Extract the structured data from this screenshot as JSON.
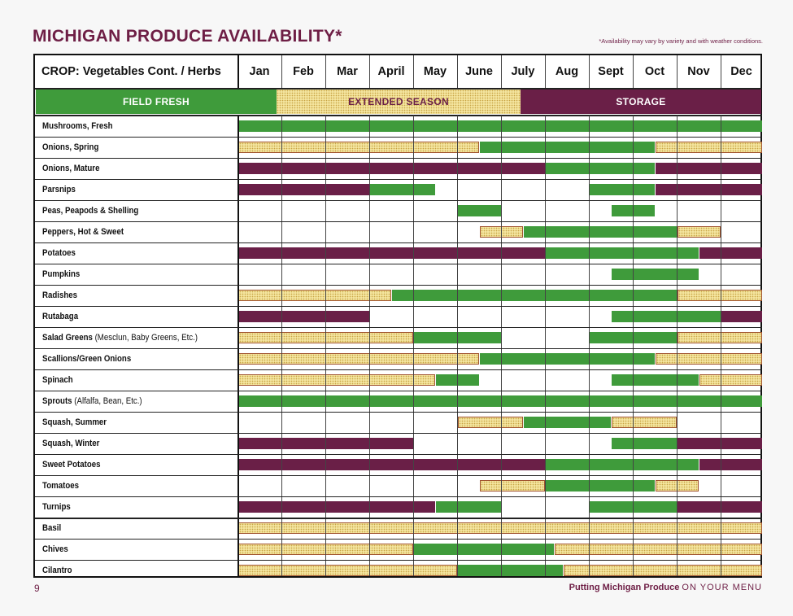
{
  "title": "MICHIGAN PRODUCE AVAILABILITY*",
  "note": "*Availability may vary by variety and with weather conditions.",
  "table": {
    "crop_header": "CROP: Vegetables Cont. / Herbs",
    "months": [
      "Jan",
      "Feb",
      "Mar",
      "April",
      "May",
      "June",
      "July",
      "Aug",
      "Sept",
      "Oct",
      "Nov",
      "Dec"
    ],
    "legend": {
      "field_fresh": "FIELD FRESH",
      "extended_season": "EXTENDED SEASON",
      "storage": "STORAGE"
    },
    "colors": {
      "field_fresh": "#3f9b3b",
      "extended_season": "#f4e59f",
      "storage": "#6a1f47",
      "title": "#6e1e45"
    },
    "rows": [
      {
        "name": "Mushrooms, Fresh",
        "note": "",
        "bars": [
          {
            "t": "fresh",
            "s": 0,
            "e": 12
          }
        ]
      },
      {
        "name": "Onions, Spring",
        "note": "",
        "bars": [
          {
            "t": "extended",
            "s": 0,
            "e": 5.5
          },
          {
            "t": "fresh",
            "s": 5.5,
            "e": 9.5
          },
          {
            "t": "extended",
            "s": 9.5,
            "e": 12
          }
        ]
      },
      {
        "name": "Onions, Mature",
        "note": "",
        "bars": [
          {
            "t": "storage",
            "s": 0,
            "e": 7
          },
          {
            "t": "fresh",
            "s": 7,
            "e": 9.5
          },
          {
            "t": "storage",
            "s": 9.5,
            "e": 12
          }
        ]
      },
      {
        "name": "Parsnips",
        "note": "",
        "bars": [
          {
            "t": "storage",
            "s": 0,
            "e": 3
          },
          {
            "t": "fresh",
            "s": 3,
            "e": 4.5
          },
          {
            "t": "fresh",
            "s": 8,
            "e": 9.5
          },
          {
            "t": "storage",
            "s": 9.5,
            "e": 12
          }
        ]
      },
      {
        "name": "Peas, Peapods & Shelling",
        "note": "",
        "bars": [
          {
            "t": "fresh",
            "s": 5,
            "e": 6
          },
          {
            "t": "fresh",
            "s": 8.5,
            "e": 9.5
          }
        ]
      },
      {
        "name": "Peppers, Hot & Sweet",
        "note": "",
        "bars": [
          {
            "t": "extended",
            "s": 5.5,
            "e": 6.5
          },
          {
            "t": "fresh",
            "s": 6.5,
            "e": 10
          },
          {
            "t": "extended",
            "s": 10,
            "e": 11
          }
        ]
      },
      {
        "name": "Potatoes",
        "note": "",
        "bars": [
          {
            "t": "storage",
            "s": 0,
            "e": 7
          },
          {
            "t": "fresh",
            "s": 7,
            "e": 10.5
          },
          {
            "t": "storage",
            "s": 10.5,
            "e": 12
          }
        ]
      },
      {
        "name": "Pumpkins",
        "note": "",
        "bars": [
          {
            "t": "fresh",
            "s": 8.5,
            "e": 10.5
          }
        ]
      },
      {
        "name": "Radishes",
        "note": "",
        "bars": [
          {
            "t": "extended",
            "s": 0,
            "e": 3.5
          },
          {
            "t": "fresh",
            "s": 3.5,
            "e": 10
          },
          {
            "t": "extended",
            "s": 10,
            "e": 12
          }
        ]
      },
      {
        "name": "Rutabaga",
        "note": "",
        "bars": [
          {
            "t": "storage",
            "s": 0,
            "e": 3
          },
          {
            "t": "fresh",
            "s": 8.5,
            "e": 11
          },
          {
            "t": "storage",
            "s": 11,
            "e": 12
          }
        ]
      },
      {
        "name": "Salad Greens",
        "note": "(Mesclun, Baby Greens, Etc.)",
        "bars": [
          {
            "t": "extended",
            "s": 0,
            "e": 4
          },
          {
            "t": "fresh",
            "s": 4,
            "e": 6
          },
          {
            "t": "fresh",
            "s": 8,
            "e": 10
          },
          {
            "t": "extended",
            "s": 10,
            "e": 12
          }
        ]
      },
      {
        "name": "Scallions/Green Onions",
        "note": "",
        "bars": [
          {
            "t": "extended",
            "s": 0,
            "e": 5.5
          },
          {
            "t": "fresh",
            "s": 5.5,
            "e": 9.5
          },
          {
            "t": "extended",
            "s": 9.5,
            "e": 12
          }
        ]
      },
      {
        "name": "Spinach",
        "note": "",
        "bars": [
          {
            "t": "extended",
            "s": 0,
            "e": 4.5
          },
          {
            "t": "fresh",
            "s": 4.5,
            "e": 5.5
          },
          {
            "t": "fresh",
            "s": 8.5,
            "e": 10.5
          },
          {
            "t": "extended",
            "s": 10.5,
            "e": 12
          }
        ]
      },
      {
        "name": "Sprouts",
        "note": "(Alfalfa, Bean, Etc.)",
        "bars": [
          {
            "t": "fresh",
            "s": 0,
            "e": 12
          }
        ]
      },
      {
        "name": "Squash, Summer",
        "note": "",
        "bars": [
          {
            "t": "extended",
            "s": 5,
            "e": 6.5
          },
          {
            "t": "fresh",
            "s": 6.5,
            "e": 8.5
          },
          {
            "t": "extended",
            "s": 8.5,
            "e": 10
          }
        ]
      },
      {
        "name": "Squash, Winter",
        "note": "",
        "bars": [
          {
            "t": "storage",
            "s": 0,
            "e": 4
          },
          {
            "t": "fresh",
            "s": 8.5,
            "e": 10
          },
          {
            "t": "storage",
            "s": 10,
            "e": 12
          }
        ]
      },
      {
        "name": "Sweet Potatoes",
        "note": "",
        "bars": [
          {
            "t": "storage",
            "s": 0,
            "e": 7
          },
          {
            "t": "fresh",
            "s": 7,
            "e": 10.5
          },
          {
            "t": "storage",
            "s": 10.5,
            "e": 12
          }
        ]
      },
      {
        "name": "Tomatoes",
        "note": "",
        "bars": [
          {
            "t": "extended",
            "s": 5.5,
            "e": 7
          },
          {
            "t": "fresh",
            "s": 7,
            "e": 9.5
          },
          {
            "t": "extended",
            "s": 9.5,
            "e": 10.5
          }
        ]
      },
      {
        "name": "Turnips",
        "note": "",
        "bars": [
          {
            "t": "storage",
            "s": 0,
            "e": 4.5
          },
          {
            "t": "fresh",
            "s": 4.5,
            "e": 6
          },
          {
            "t": "fresh",
            "s": 8,
            "e": 10
          },
          {
            "t": "storage",
            "s": 10,
            "e": 12
          }
        ]
      },
      {
        "name": "Basil",
        "note": "",
        "bars": [
          {
            "t": "extended",
            "s": 0,
            "e": 12
          }
        ]
      },
      {
        "name": "Chives",
        "note": "",
        "bars": [
          {
            "t": "extended",
            "s": 0,
            "e": 4
          },
          {
            "t": "fresh",
            "s": 4,
            "e": 7.2
          },
          {
            "t": "extended",
            "s": 7.2,
            "e": 12
          }
        ]
      },
      {
        "name": "Cilantro",
        "note": "",
        "bars": [
          {
            "t": "extended",
            "s": 0,
            "e": 5
          },
          {
            "t": "fresh",
            "s": 5,
            "e": 7.4
          },
          {
            "t": "extended",
            "s": 7.4,
            "e": 12
          }
        ]
      }
    ]
  },
  "footer": {
    "page_number": "9",
    "tagline_bold": "Putting Michigan Produce",
    "tagline_rest": "ON YOUR MENU"
  }
}
